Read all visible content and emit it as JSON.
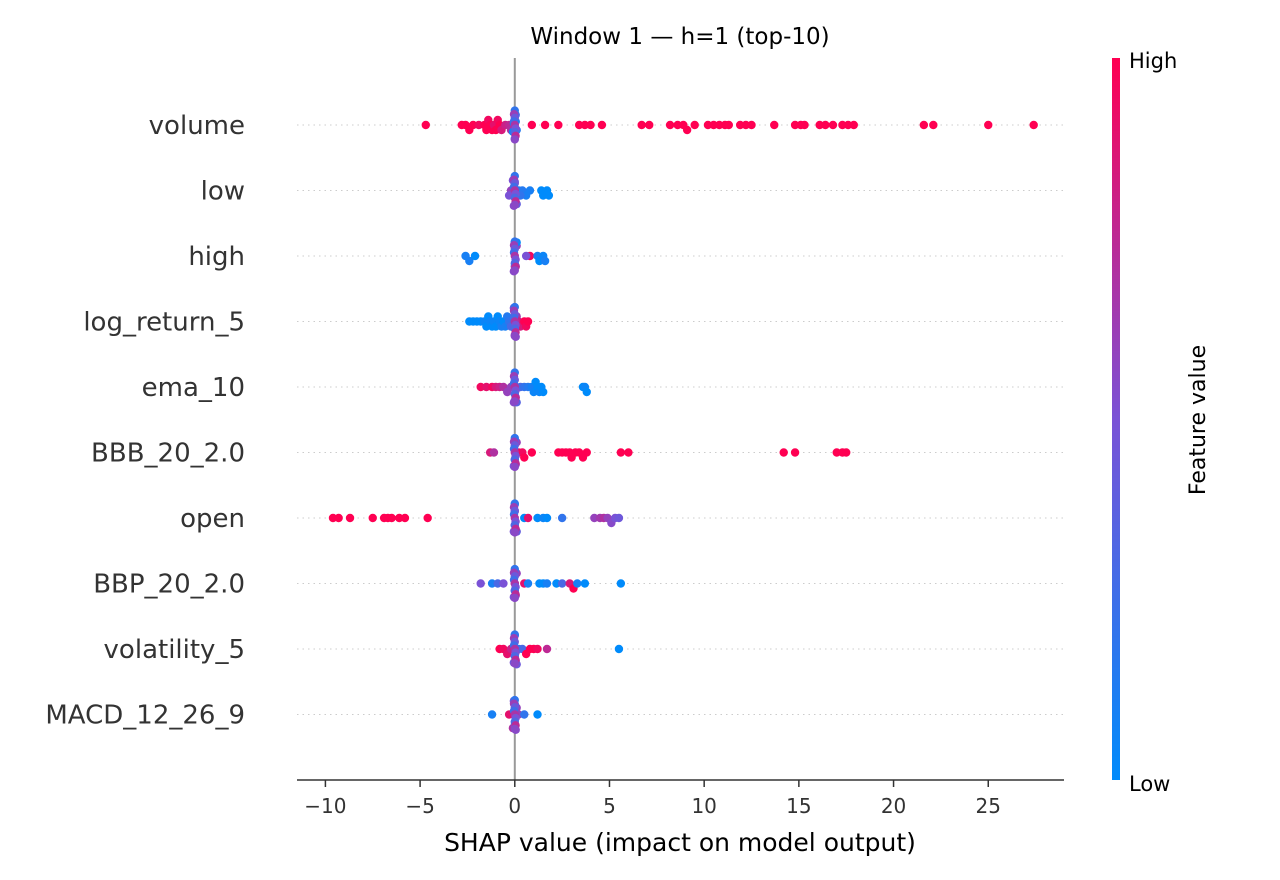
{
  "chart_data": {
    "type": "scatter",
    "title": "Window 1 — h=1 (top-10)",
    "xlabel": "SHAP value (impact on model output)",
    "xlim": [
      -11.5,
      29.0
    ],
    "xticks": [
      -10,
      -5,
      0,
      5,
      10,
      15,
      20,
      25
    ],
    "xtick_labels": [
      "−10",
      "−5",
      "0",
      "5",
      "10",
      "15",
      "20",
      "25"
    ],
    "colorbar": {
      "label": "Feature value",
      "high_label": "High",
      "low_label": "Low",
      "high_color": "#ff0052",
      "mid_color": "#7a52d6",
      "low_color": "#008bfb"
    },
    "features": [
      {
        "name": "volume",
        "points": [
          [
            -4.7,
            1.0
          ],
          [
            -2.8,
            1.0
          ],
          [
            -2.6,
            1.0
          ],
          [
            -2.4,
            1.0
          ],
          [
            -2.2,
            1.0
          ],
          [
            -1.9,
            0.95
          ],
          [
            -1.6,
            1.0
          ],
          [
            -1.5,
            1.0
          ],
          [
            -1.4,
            0.95
          ],
          [
            -1.3,
            1.0
          ],
          [
            -1.2,
            1.0
          ],
          [
            -1.1,
            0.9
          ],
          [
            -1.0,
            1.0
          ],
          [
            -0.9,
            0.95
          ],
          [
            -0.8,
            1.0
          ],
          [
            -0.7,
            0.85
          ],
          [
            -0.5,
            0.8
          ],
          [
            -0.3,
            0.75
          ],
          [
            -0.2,
            0.7
          ],
          [
            0.0,
            0.0
          ],
          [
            0.05,
            0.1
          ],
          [
            -0.05,
            0.05
          ],
          [
            0.1,
            0.15
          ],
          [
            -0.1,
            0.1
          ],
          [
            0.0,
            0.2
          ],
          [
            0.05,
            0.3
          ],
          [
            0.9,
            1.0
          ],
          [
            1.6,
            1.0
          ],
          [
            2.3,
            1.0
          ],
          [
            3.4,
            1.0
          ],
          [
            3.7,
            1.0
          ],
          [
            4.0,
            1.0
          ],
          [
            4.6,
            1.0
          ],
          [
            6.7,
            1.0
          ],
          [
            7.1,
            1.0
          ],
          [
            8.2,
            1.0
          ],
          [
            8.6,
            1.0
          ],
          [
            8.9,
            1.0
          ],
          [
            9.1,
            1.0
          ],
          [
            9.5,
            1.0
          ],
          [
            10.2,
            1.0
          ],
          [
            10.5,
            1.0
          ],
          [
            10.8,
            1.0
          ],
          [
            11.1,
            1.0
          ],
          [
            11.3,
            1.0
          ],
          [
            11.9,
            1.0
          ],
          [
            12.2,
            1.0
          ],
          [
            12.5,
            1.0
          ],
          [
            13.7,
            1.0
          ],
          [
            14.8,
            1.0
          ],
          [
            15.1,
            1.0
          ],
          [
            15.3,
            1.0
          ],
          [
            16.1,
            1.0
          ],
          [
            16.4,
            1.0
          ],
          [
            16.8,
            1.0
          ],
          [
            17.3,
            1.0
          ],
          [
            17.6,
            1.0
          ],
          [
            17.9,
            1.0
          ],
          [
            21.6,
            1.0
          ],
          [
            22.1,
            1.0
          ],
          [
            25.0,
            1.0
          ],
          [
            27.4,
            1.0
          ]
        ]
      },
      {
        "name": "low",
        "points": [
          [
            -0.2,
            0.6
          ],
          [
            0.0,
            0.5
          ],
          [
            0.05,
            0.6
          ],
          [
            -0.05,
            0.55
          ],
          [
            0.1,
            0.4
          ],
          [
            -0.1,
            0.5
          ],
          [
            0.0,
            0.45
          ],
          [
            0.2,
            0.2
          ],
          [
            0.4,
            0.15
          ],
          [
            0.6,
            0.1
          ],
          [
            0.8,
            0.1
          ],
          [
            1.4,
            0.0
          ],
          [
            1.5,
            0.0
          ],
          [
            1.7,
            0.0
          ],
          [
            1.8,
            0.0
          ],
          [
            0.3,
            0.2
          ],
          [
            -0.3,
            0.5
          ]
        ]
      },
      {
        "name": "high",
        "points": [
          [
            -2.6,
            0.1
          ],
          [
            -2.4,
            0.1
          ],
          [
            -2.1,
            0.0
          ],
          [
            0.0,
            0.6
          ],
          [
            0.05,
            0.5
          ],
          [
            -0.05,
            0.55
          ],
          [
            0.1,
            0.6
          ],
          [
            0.0,
            0.45
          ],
          [
            0.0,
            0.3
          ],
          [
            0.05,
            0.2
          ],
          [
            0.0,
            0.1
          ],
          [
            0.1,
            0.0
          ],
          [
            0.8,
            0.95
          ],
          [
            1.2,
            0.1
          ],
          [
            1.3,
            0.0
          ],
          [
            1.5,
            0.05
          ],
          [
            1.6,
            0.1
          ],
          [
            0.6,
            0.5
          ]
        ]
      },
      {
        "name": "log_return_5",
        "points": [
          [
            -2.4,
            0.0
          ],
          [
            -2.2,
            0.0
          ],
          [
            -2.0,
            0.0
          ],
          [
            -1.8,
            0.0
          ],
          [
            -1.6,
            0.05
          ],
          [
            -1.5,
            0.0
          ],
          [
            -1.4,
            0.0
          ],
          [
            -1.3,
            0.05
          ],
          [
            -1.2,
            0.0
          ],
          [
            -1.1,
            0.05
          ],
          [
            -1.0,
            0.0
          ],
          [
            -0.9,
            0.0
          ],
          [
            -0.8,
            0.05
          ],
          [
            -0.7,
            0.1
          ],
          [
            -0.6,
            0.0
          ],
          [
            -0.5,
            0.1
          ],
          [
            -0.4,
            0.15
          ],
          [
            -0.3,
            0.2
          ],
          [
            -0.2,
            0.3
          ],
          [
            0.0,
            0.5
          ],
          [
            0.0,
            0.6
          ],
          [
            0.05,
            0.55
          ],
          [
            -0.05,
            0.5
          ],
          [
            0.1,
            0.65
          ],
          [
            0.0,
            0.7
          ],
          [
            0.2,
            0.8
          ],
          [
            0.3,
            0.85
          ],
          [
            0.5,
            1.0
          ],
          [
            0.6,
            0.95
          ],
          [
            0.7,
            1.0
          ]
        ]
      },
      {
        "name": "ema_10",
        "points": [
          [
            -1.8,
            0.95
          ],
          [
            -1.5,
            0.9
          ],
          [
            -1.2,
            0.95
          ],
          [
            -1.0,
            0.85
          ],
          [
            -0.8,
            0.8
          ],
          [
            -0.6,
            0.7
          ],
          [
            -0.4,
            0.6
          ],
          [
            -0.2,
            0.6
          ],
          [
            0.0,
            0.5
          ],
          [
            0.05,
            0.5
          ],
          [
            -0.05,
            0.55
          ],
          [
            0.0,
            0.4
          ],
          [
            0.1,
            0.35
          ],
          [
            0.3,
            0.3
          ],
          [
            0.5,
            0.2
          ],
          [
            0.7,
            0.15
          ],
          [
            0.9,
            0.1
          ],
          [
            1.0,
            0.05
          ],
          [
            1.1,
            0.0
          ],
          [
            1.2,
            0.0
          ],
          [
            1.3,
            0.05
          ],
          [
            1.4,
            0.0
          ],
          [
            1.5,
            0.0
          ],
          [
            3.6,
            0.0
          ],
          [
            3.7,
            0.05
          ],
          [
            3.8,
            0.0
          ]
        ]
      },
      {
        "name": "BBB_20_2.0",
        "points": [
          [
            -1.3,
            0.85
          ],
          [
            -1.1,
            0.7
          ],
          [
            0.0,
            0.5
          ],
          [
            0.05,
            0.55
          ],
          [
            -0.05,
            0.5
          ],
          [
            0.1,
            0.6
          ],
          [
            0.0,
            0.45
          ],
          [
            0.2,
            0.9
          ],
          [
            0.4,
            0.95
          ],
          [
            0.5,
            1.0
          ],
          [
            0.9,
            1.0
          ],
          [
            2.3,
            1.0
          ],
          [
            2.5,
            1.0
          ],
          [
            2.7,
            1.0
          ],
          [
            2.9,
            1.0
          ],
          [
            3.0,
            1.0
          ],
          [
            3.2,
            1.0
          ],
          [
            3.4,
            1.0
          ],
          [
            3.6,
            1.0
          ],
          [
            3.8,
            1.0
          ],
          [
            5.6,
            1.0
          ],
          [
            6.0,
            1.0
          ],
          [
            14.2,
            1.0
          ],
          [
            14.8,
            1.0
          ],
          [
            17.0,
            1.0
          ],
          [
            17.3,
            1.0
          ],
          [
            17.5,
            1.0
          ]
        ]
      },
      {
        "name": "open",
        "points": [
          [
            -9.6,
            1.0
          ],
          [
            -9.3,
            1.0
          ],
          [
            -8.7,
            1.0
          ],
          [
            -7.5,
            1.0
          ],
          [
            -6.9,
            1.0
          ],
          [
            -6.7,
            1.0
          ],
          [
            -6.5,
            1.0
          ],
          [
            -6.1,
            1.0
          ],
          [
            -5.8,
            1.0
          ],
          [
            -4.6,
            1.0
          ],
          [
            0.0,
            0.5
          ],
          [
            0.05,
            0.55
          ],
          [
            -0.05,
            0.5
          ],
          [
            0.1,
            0.4
          ],
          [
            0.0,
            0.6
          ],
          [
            0.0,
            0.3
          ],
          [
            0.5,
            0.0
          ],
          [
            0.7,
            0.9
          ],
          [
            1.2,
            0.0
          ],
          [
            1.5,
            0.05
          ],
          [
            1.7,
            0.0
          ],
          [
            2.5,
            0.2
          ],
          [
            4.2,
            0.6
          ],
          [
            4.5,
            0.65
          ],
          [
            4.7,
            0.7
          ],
          [
            4.9,
            0.6
          ],
          [
            5.1,
            0.55
          ],
          [
            5.3,
            0.5
          ],
          [
            5.5,
            0.45
          ]
        ]
      },
      {
        "name": "BBP_20_2.0",
        "points": [
          [
            -1.8,
            0.5
          ],
          [
            -1.2,
            0.1
          ],
          [
            -0.9,
            0.3
          ],
          [
            -0.6,
            0.5
          ],
          [
            0.0,
            0.5
          ],
          [
            0.05,
            0.55
          ],
          [
            -0.05,
            0.5
          ],
          [
            0.1,
            0.6
          ],
          [
            0.0,
            0.45
          ],
          [
            0.0,
            0.7
          ],
          [
            0.5,
            0.9
          ],
          [
            0.7,
            0.1
          ],
          [
            1.3,
            0.0
          ],
          [
            1.5,
            0.0
          ],
          [
            1.7,
            0.1
          ],
          [
            2.2,
            0.0
          ],
          [
            2.5,
            0.3
          ],
          [
            2.9,
            0.85
          ],
          [
            3.1,
            1.0
          ],
          [
            3.3,
            0.1
          ],
          [
            3.7,
            0.0
          ],
          [
            5.6,
            0.0
          ]
        ]
      },
      {
        "name": "volatility_5",
        "points": [
          [
            -0.8,
            1.0
          ],
          [
            -0.6,
            0.95
          ],
          [
            -0.4,
            0.9
          ],
          [
            -0.2,
            0.8
          ],
          [
            0.0,
            0.5
          ],
          [
            0.05,
            0.55
          ],
          [
            -0.05,
            0.5
          ],
          [
            0.1,
            0.45
          ],
          [
            0.0,
            0.4
          ],
          [
            0.0,
            0.2
          ],
          [
            0.2,
            0.2
          ],
          [
            0.4,
            0.3
          ],
          [
            0.6,
            1.0
          ],
          [
            0.8,
            1.0
          ],
          [
            1.0,
            1.0
          ],
          [
            1.2,
            0.95
          ],
          [
            1.7,
            0.75
          ],
          [
            5.5,
            0.0
          ]
        ]
      },
      {
        "name": "MACD_12_26_9",
        "points": [
          [
            -1.2,
            0.1
          ],
          [
            -0.3,
            0.9
          ],
          [
            -0.1,
            0.7
          ],
          [
            0.0,
            0.5
          ],
          [
            0.05,
            0.55
          ],
          [
            -0.05,
            0.5
          ],
          [
            0.1,
            0.6
          ],
          [
            0.0,
            0.4
          ],
          [
            0.0,
            0.3
          ],
          [
            0.2,
            0.6
          ],
          [
            0.5,
            0.2
          ],
          [
            1.2,
            0.0
          ]
        ]
      }
    ]
  }
}
